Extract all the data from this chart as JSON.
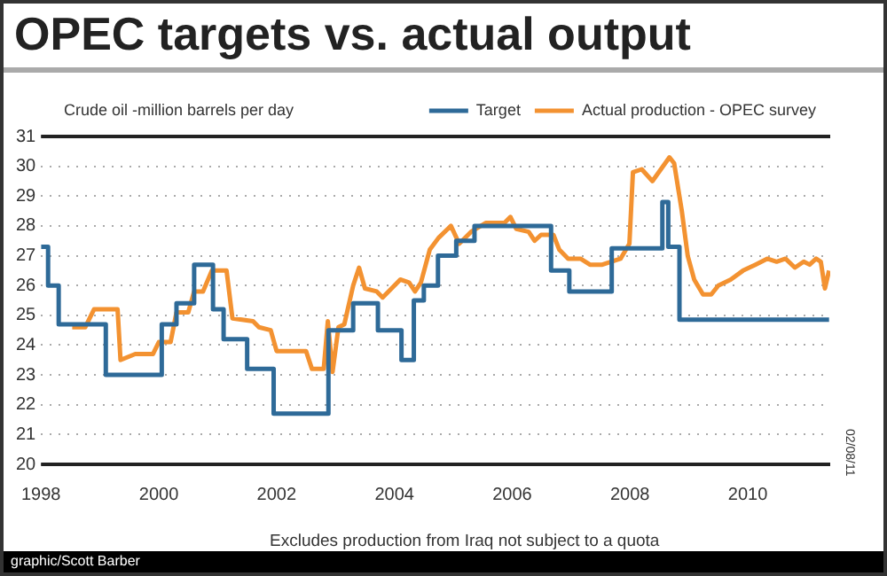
{
  "chart_data": {
    "type": "line",
    "title": "OPEC targets vs. actual output",
    "ylabel": "Crude oil -million barrels per day",
    "xlim": [
      1998,
      2011.4
    ],
    "xticks": [
      1998,
      2000,
      2002,
      2004,
      2006,
      2008,
      2010
    ],
    "ylim": [
      20,
      31
    ],
    "yticks": [
      20,
      21,
      22,
      23,
      24,
      25,
      26,
      27,
      28,
      29,
      30,
      31
    ],
    "grid": "y",
    "legend": "top right",
    "marker": "none",
    "annotations": [
      "Excludes production from Iraq not subject to a quota",
      "graphic/Scott Barber",
      "02/08/11"
    ],
    "series": [
      {
        "name": "Target",
        "type": "step",
        "color": "#2e6a98",
        "x": [
          1998,
          1998.12,
          1998.3,
          1999.1,
          2000.05,
          2000.3,
          2000.6,
          2000.92,
          2001.1,
          2001.5,
          2001.95,
          2002.88,
          2003.3,
          2003.72,
          2004.12,
          2004.33,
          2004.5,
          2004.74,
          2005.05,
          2005.36,
          2006.66,
          2006.97,
          2007.69,
          2008.55,
          2008.65,
          2008.84,
          2011.38
        ],
        "values": [
          27.3,
          26,
          24.7,
          23,
          24.7,
          25.4,
          26.7,
          25.2,
          24.2,
          23.2,
          21.7,
          24.5,
          25.4,
          24.5,
          23.5,
          25.5,
          26,
          27,
          27.5,
          28,
          26.5,
          25.8,
          27.25,
          28.8,
          27.3,
          24.85,
          24.85
        ]
      },
      {
        "name": "Actual production - OPEC survey",
        "type": "line",
        "color": "#f39231",
        "x": [
          1998.53,
          1998.75,
          1998.9,
          1999.3,
          1999.35,
          1999.6,
          1999.9,
          2000.0,
          2000.2,
          2000.3,
          2000.5,
          2000.6,
          2000.75,
          2000.9,
          2001.15,
          2001.25,
          2001.6,
          2001.7,
          2001.9,
          2002.0,
          2002.5,
          2002.6,
          2002.8,
          2002.87,
          2002.95,
          2003.05,
          2003.15,
          2003.3,
          2003.4,
          2003.5,
          2003.7,
          2003.8,
          2003.9,
          2004.1,
          2004.25,
          2004.35,
          2004.45,
          2004.6,
          2004.75,
          2004.96,
          2005.1,
          2005.3,
          2005.55,
          2005.87,
          2005.97,
          2006.07,
          2006.28,
          2006.38,
          2006.49,
          2006.7,
          2006.8,
          2006.95,
          2007.16,
          2007.32,
          2007.53,
          2007.84,
          2007.99,
          2008.05,
          2008.2,
          2008.38,
          2008.67,
          2008.75,
          2008.88,
          2008.98,
          2009.09,
          2009.24,
          2009.38,
          2009.5,
          2009.71,
          2009.92,
          2010.13,
          2010.33,
          2010.49,
          2010.64,
          2010.8,
          2010.95,
          2011.05,
          2011.16,
          2011.24,
          2011.31,
          2011.38
        ],
        "values": [
          24.6,
          24.6,
          25.2,
          25.2,
          23.5,
          23.7,
          23.7,
          24.1,
          24.1,
          25.1,
          25.1,
          25.8,
          25.8,
          26.5,
          26.5,
          24.9,
          24.8,
          24.6,
          24.5,
          23.8,
          23.8,
          23.2,
          23.2,
          24.8,
          23.1,
          24.6,
          24.7,
          26,
          26.6,
          25.9,
          25.8,
          25.6,
          25.8,
          26.2,
          26.1,
          25.8,
          26.1,
          27.2,
          27.6,
          28,
          27.4,
          27.8,
          28.1,
          28.1,
          28.3,
          27.9,
          27.8,
          27.5,
          27.7,
          27.7,
          27.2,
          26.9,
          26.9,
          26.7,
          26.7,
          26.9,
          27.4,
          29.8,
          29.9,
          29.5,
          30.3,
          30.1,
          28.5,
          27,
          26.2,
          25.7,
          25.7,
          26,
          26.2,
          26.5,
          26.7,
          26.9,
          26.8,
          26.9,
          26.6,
          26.8,
          26.7,
          26.9,
          26.8,
          25.9,
          26.5
        ]
      }
    ]
  }
}
